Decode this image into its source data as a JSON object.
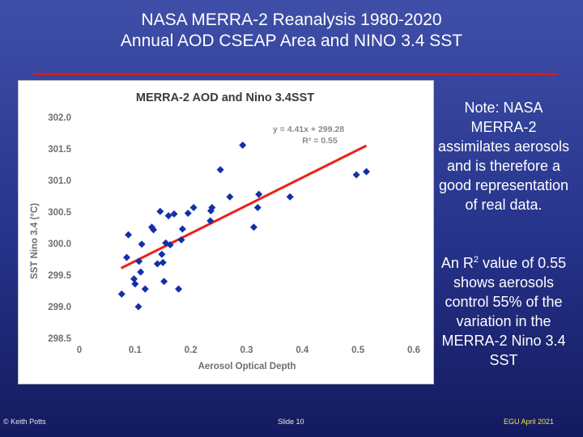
{
  "slide": {
    "title_line1": "NASA MERRA-2 Reanalysis 1980-2020",
    "title_line2": "Annual AOD CSEAP Area and NINO 3.4 SST"
  },
  "notes": {
    "note1": "Note: NASA MERRA-2 assimilates aerosols and is therefore a good representation of real data.",
    "note2_prefix": "An R",
    "note2_sup": "2",
    "note2_suffix": " value of 0.55 shows aerosols control 55% of the variation in the MERRA-2 Nino 3.4 SST"
  },
  "footer": {
    "left": "© Keith Potts",
    "middle": "Slide 10",
    "right": "EGU April 2021"
  },
  "colors": {
    "points": "#1230a8",
    "trendline": "#e8231b",
    "rule": "#cc1f1f",
    "footer_right": "#f2e24a"
  },
  "chart_data": {
    "type": "scatter",
    "title": "MERRA-2 AOD and Nino 3.4SST",
    "xlabel": "Aerosol Optical Depth",
    "ylabel": "SST Nino 3.4 (°C)",
    "xlim": [
      0,
      0.6
    ],
    "ylim": [
      298.5,
      302.0
    ],
    "xticks": [
      "0",
      "0.1",
      "0.2",
      "0.3",
      "0.4",
      "0.5",
      "0.6"
    ],
    "yticks": [
      "302.0",
      "301.5",
      "301.0",
      "300.5",
      "300.0",
      "299.5",
      "299.0",
      "298.5"
    ],
    "xtick_values": [
      0,
      0.1,
      0.2,
      0.3,
      0.4,
      0.5,
      0.6
    ],
    "ytick_values": [
      302.0,
      301.5,
      301.0,
      300.5,
      300.0,
      299.5,
      299.0,
      298.5
    ],
    "grid": false,
    "equation": "y = 4.41x + 299.28",
    "r2": "R² = 0.55",
    "trendline": {
      "slope": 4.41,
      "intercept": 299.28,
      "x_range": [
        0.075,
        0.515
      ]
    },
    "points": [
      {
        "x": 0.076,
        "y": 299.2
      },
      {
        "x": 0.085,
        "y": 299.78
      },
      {
        "x": 0.088,
        "y": 300.14
      },
      {
        "x": 0.098,
        "y": 299.44
      },
      {
        "x": 0.1,
        "y": 299.36
      },
      {
        "x": 0.106,
        "y": 299.0
      },
      {
        "x": 0.107,
        "y": 299.72
      },
      {
        "x": 0.11,
        "y": 299.55
      },
      {
        "x": 0.112,
        "y": 299.99
      },
      {
        "x": 0.118,
        "y": 299.28
      },
      {
        "x": 0.13,
        "y": 300.26
      },
      {
        "x": 0.133,
        "y": 300.22
      },
      {
        "x": 0.14,
        "y": 299.68
      },
      {
        "x": 0.145,
        "y": 300.51
      },
      {
        "x": 0.148,
        "y": 299.83
      },
      {
        "x": 0.15,
        "y": 299.7
      },
      {
        "x": 0.152,
        "y": 299.4
      },
      {
        "x": 0.155,
        "y": 300.01
      },
      {
        "x": 0.16,
        "y": 300.44
      },
      {
        "x": 0.163,
        "y": 299.98
      },
      {
        "x": 0.17,
        "y": 300.47
      },
      {
        "x": 0.178,
        "y": 299.28
      },
      {
        "x": 0.183,
        "y": 300.06
      },
      {
        "x": 0.185,
        "y": 300.23
      },
      {
        "x": 0.195,
        "y": 300.48
      },
      {
        "x": 0.205,
        "y": 300.57
      },
      {
        "x": 0.235,
        "y": 300.36
      },
      {
        "x": 0.236,
        "y": 300.52
      },
      {
        "x": 0.238,
        "y": 300.57
      },
      {
        "x": 0.253,
        "y": 301.17
      },
      {
        "x": 0.27,
        "y": 300.74
      },
      {
        "x": 0.293,
        "y": 301.56
      },
      {
        "x": 0.313,
        "y": 300.26
      },
      {
        "x": 0.32,
        "y": 300.57
      },
      {
        "x": 0.322,
        "y": 300.78
      },
      {
        "x": 0.378,
        "y": 300.74
      },
      {
        "x": 0.497,
        "y": 301.09
      },
      {
        "x": 0.515,
        "y": 301.14
      }
    ]
  }
}
